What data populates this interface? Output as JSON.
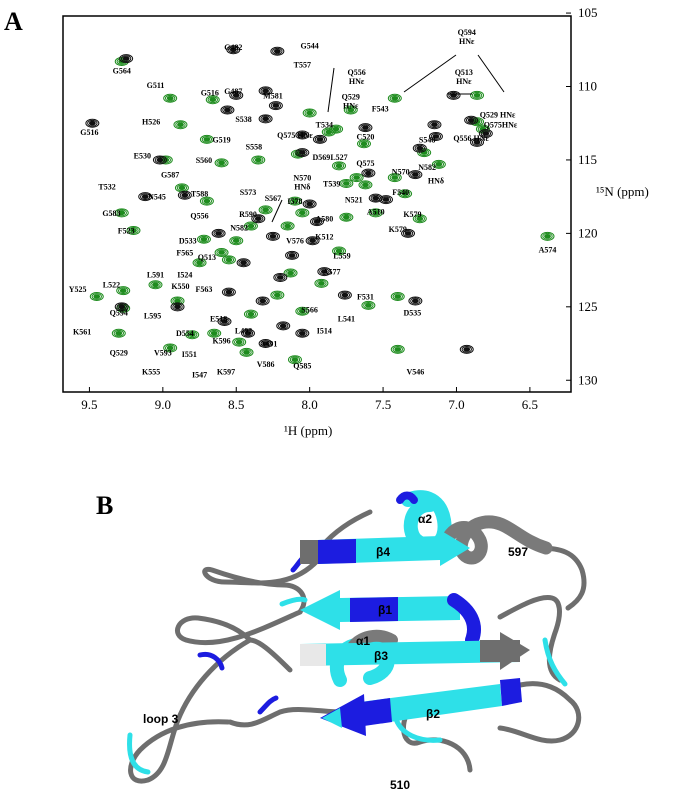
{
  "panels": {
    "a": {
      "letter": "A",
      "x_label": "¹H (ppm)",
      "y_label": "¹⁵N (ppm)",
      "x_ticks": [
        9.5,
        9.0,
        8.5,
        8.0,
        7.5,
        7.0,
        6.5
      ],
      "y_ticks": [
        105,
        110,
        115,
        120,
        125,
        130
      ],
      "x_range": [
        9.68,
        6.22
      ],
      "y_range": [
        105.2,
        130.8
      ]
    },
    "b": {
      "letter": "B",
      "labels": {
        "alpha2": "α2",
        "beta4": "β4",
        "res597": "597",
        "beta1": "β1",
        "alpha1": "α1",
        "beta3": "β3",
        "beta2": "β2",
        "loop3": "loop 3",
        "res510": "510"
      }
    }
  },
  "chart_data": {
    "type": "scatter",
    "title": "",
    "xlabel": "¹H (ppm)",
    "ylabel": "¹⁵N (ppm)",
    "xlim": [
      9.68,
      6.22
    ],
    "ylim": [
      105.2,
      130.8
    ],
    "series": [
      {
        "name": "",
        "color": "#1e8c1e",
        "points": [
          {
            "x": 9.28,
            "y": 108.3
          },
          {
            "x": 8.95,
            "y": 110.8
          },
          {
            "x": 8.66,
            "y": 110.9
          },
          {
            "x": 8.88,
            "y": 112.6
          },
          {
            "x": 8.7,
            "y": 113.6
          },
          {
            "x": 8.98,
            "y": 115.0
          },
          {
            "x": 8.6,
            "y": 115.2
          },
          {
            "x": 8.35,
            "y": 115.0
          },
          {
            "x": 8.87,
            "y": 116.9
          },
          {
            "x": 8.7,
            "y": 117.8
          },
          {
            "x": 9.28,
            "y": 118.6
          },
          {
            "x": 9.2,
            "y": 119.8
          },
          {
            "x": 8.72,
            "y": 120.4
          },
          {
            "x": 8.55,
            "y": 121.8
          },
          {
            "x": 8.75,
            "y": 122.0
          },
          {
            "x": 9.05,
            "y": 123.5
          },
          {
            "x": 9.27,
            "y": 123.9
          },
          {
            "x": 9.45,
            "y": 124.3
          },
          {
            "x": 8.9,
            "y": 124.6
          },
          {
            "x": 9.27,
            "y": 125.1
          },
          {
            "x": 9.3,
            "y": 126.8
          },
          {
            "x": 8.95,
            "y": 127.8
          },
          {
            "x": 8.8,
            "y": 126.9
          },
          {
            "x": 8.65,
            "y": 126.8
          },
          {
            "x": 8.48,
            "y": 127.4
          },
          {
            "x": 8.43,
            "y": 128.1
          },
          {
            "x": 8.4,
            "y": 125.5
          },
          {
            "x": 8.3,
            "y": 118.4
          },
          {
            "x": 8.15,
            "y": 119.5
          },
          {
            "x": 8.1,
            "y": 117.8
          },
          {
            "x": 8.05,
            "y": 118.6
          },
          {
            "x": 8.13,
            "y": 122.7
          },
          {
            "x": 8.05,
            "y": 125.3
          },
          {
            "x": 7.92,
            "y": 123.4
          },
          {
            "x": 7.8,
            "y": 121.2
          },
          {
            "x": 7.75,
            "y": 118.9
          },
          {
            "x": 8.22,
            "y": 124.2
          },
          {
            "x": 8.1,
            "y": 128.6
          },
          {
            "x": 8.4,
            "y": 119.5
          },
          {
            "x": 8.5,
            "y": 120.5
          },
          {
            "x": 8.6,
            "y": 121.3
          },
          {
            "x": 8.0,
            "y": 111.8
          },
          {
            "x": 7.87,
            "y": 113.1
          },
          {
            "x": 8.08,
            "y": 114.6
          },
          {
            "x": 7.63,
            "y": 113.9
          },
          {
            "x": 7.68,
            "y": 116.2
          },
          {
            "x": 7.75,
            "y": 116.6
          },
          {
            "x": 7.62,
            "y": 116.7
          },
          {
            "x": 7.42,
            "y": 116.2
          },
          {
            "x": 7.35,
            "y": 117.3
          },
          {
            "x": 7.55,
            "y": 118.6
          },
          {
            "x": 7.25,
            "y": 119.0
          },
          {
            "x": 7.22,
            "y": 114.5
          },
          {
            "x": 6.38,
            "y": 120.2
          },
          {
            "x": 7.4,
            "y": 124.3
          },
          {
            "x": 7.4,
            "y": 127.9
          },
          {
            "x": 7.6,
            "y": 124.9
          },
          {
            "x": 7.42,
            "y": 110.8
          },
          {
            "x": 7.12,
            "y": 115.3
          },
          {
            "x": 6.86,
            "y": 112.4
          },
          {
            "x": 6.82,
            "y": 112.9
          },
          {
            "x": 6.86,
            "y": 110.6
          },
          {
            "x": 7.72,
            "y": 111.6
          },
          {
            "x": 7.82,
            "y": 112.9
          },
          {
            "x": 7.8,
            "y": 115.4
          }
        ]
      },
      {
        "name": "",
        "color": "#111111",
        "points": [
          {
            "x": 8.52,
            "y": 107.5
          },
          {
            "x": 8.22,
            "y": 107.6
          },
          {
            "x": 9.25,
            "y": 108.1
          },
          {
            "x": 9.48,
            "y": 112.5
          },
          {
            "x": 8.5,
            "y": 110.6
          },
          {
            "x": 8.56,
            "y": 111.6
          },
          {
            "x": 8.3,
            "y": 110.3
          },
          {
            "x": 8.23,
            "y": 111.3
          },
          {
            "x": 8.3,
            "y": 112.2
          },
          {
            "x": 8.05,
            "y": 114.5
          },
          {
            "x": 8.05,
            "y": 113.3
          },
          {
            "x": 7.93,
            "y": 113.6
          },
          {
            "x": 7.62,
            "y": 112.8
          },
          {
            "x": 9.02,
            "y": 115.0
          },
          {
            "x": 9.12,
            "y": 117.5
          },
          {
            "x": 8.85,
            "y": 117.4
          },
          {
            "x": 8.62,
            "y": 120.0
          },
          {
            "x": 9.28,
            "y": 125.0
          },
          {
            "x": 8.9,
            "y": 125.0
          },
          {
            "x": 8.55,
            "y": 124.0
          },
          {
            "x": 8.58,
            "y": 126.0
          },
          {
            "x": 8.42,
            "y": 126.8
          },
          {
            "x": 8.3,
            "y": 127.5
          },
          {
            "x": 8.18,
            "y": 126.3
          },
          {
            "x": 8.05,
            "y": 126.8
          },
          {
            "x": 8.32,
            "y": 124.6
          },
          {
            "x": 8.2,
            "y": 123.0
          },
          {
            "x": 8.12,
            "y": 121.5
          },
          {
            "x": 7.98,
            "y": 120.5
          },
          {
            "x": 7.9,
            "y": 122.6
          },
          {
            "x": 7.76,
            "y": 124.2
          },
          {
            "x": 7.95,
            "y": 119.2
          },
          {
            "x": 8.0,
            "y": 118.0
          },
          {
            "x": 7.6,
            "y": 115.9
          },
          {
            "x": 7.55,
            "y": 117.6
          },
          {
            "x": 7.48,
            "y": 117.7
          },
          {
            "x": 7.28,
            "y": 116.0
          },
          {
            "x": 7.14,
            "y": 113.4
          },
          {
            "x": 7.33,
            "y": 120.0
          },
          {
            "x": 7.28,
            "y": 124.6
          },
          {
            "x": 6.93,
            "y": 127.9
          },
          {
            "x": 7.25,
            "y": 114.2
          },
          {
            "x": 7.15,
            "y": 112.6
          },
          {
            "x": 6.9,
            "y": 112.3
          },
          {
            "x": 6.86,
            "y": 113.8
          },
          {
            "x": 6.8,
            "y": 113.2
          },
          {
            "x": 7.02,
            "y": 110.6
          },
          {
            "x": 8.35,
            "y": 119.0
          },
          {
            "x": 8.45,
            "y": 122.0
          },
          {
            "x": 8.25,
            "y": 120.2
          }
        ]
      }
    ],
    "annotations": [
      {
        "text": "G482",
        "x": 8.52,
        "y": 107.5
      },
      {
        "text": "G544",
        "x": 8.0,
        "y": 107.4
      },
      {
        "text": "G564",
        "x": 9.28,
        "y": 109.1
      },
      {
        "text": "T557",
        "x": 8.05,
        "y": 108.7
      },
      {
        "text": "Q594\nHNε",
        "x": 6.93,
        "y": 106.5
      },
      {
        "text": "Q556\nHNε",
        "x": 7.68,
        "y": 109.2
      },
      {
        "text": "Q513\nHNε",
        "x": 6.95,
        "y": 109.2
      },
      {
        "text": "G511",
        "x": 9.05,
        "y": 110.1
      },
      {
        "text": "G516",
        "x": 8.68,
        "y": 110.6
      },
      {
        "text": "G487",
        "x": 8.52,
        "y": 110.5
      },
      {
        "text": "M581",
        "x": 8.25,
        "y": 110.8
      },
      {
        "text": "Q529\nHNε",
        "x": 7.72,
        "y": 110.9
      },
      {
        "text": "F543",
        "x": 7.52,
        "y": 111.7
      },
      {
        "text": "Q529 HNε",
        "x": 6.72,
        "y": 112.1
      },
      {
        "text": "H526",
        "x": 9.08,
        "y": 112.6
      },
      {
        "text": "S538",
        "x": 8.45,
        "y": 112.4
      },
      {
        "text": "T534",
        "x": 7.9,
        "y": 112.8
      },
      {
        "text": "Q575HNε",
        "x": 6.7,
        "y": 112.8
      },
      {
        "text": "G516",
        "x": 9.5,
        "y": 113.3
      },
      {
        "text": "G519",
        "x": 8.6,
        "y": 113.8
      },
      {
        "text": "Q575 HNε",
        "x": 8.1,
        "y": 113.5
      },
      {
        "text": "C520",
        "x": 7.62,
        "y": 113.6
      },
      {
        "text": "S548",
        "x": 7.2,
        "y": 113.8
      },
      {
        "text": "Q556 HNε",
        "x": 6.9,
        "y": 113.7
      },
      {
        "text": "S558",
        "x": 8.38,
        "y": 114.3
      },
      {
        "text": "E530",
        "x": 9.14,
        "y": 114.9
      },
      {
        "text": "S560",
        "x": 8.72,
        "y": 115.2
      },
      {
        "text": "D569",
        "x": 7.92,
        "y": 115.0
      },
      {
        "text": "L527",
        "x": 7.8,
        "y": 115.0
      },
      {
        "text": "Q575",
        "x": 7.62,
        "y": 115.4
      },
      {
        "text": "N570",
        "x": 7.38,
        "y": 116.0
      },
      {
        "text": "N582",
        "x": 7.2,
        "y": 115.7
      },
      {
        "text": "N570\nHNδ",
        "x": 8.05,
        "y": 116.4
      },
      {
        "text": "HNδ",
        "x": 7.14,
        "y": 116.6
      },
      {
        "text": "G587",
        "x": 8.95,
        "y": 116.2
      },
      {
        "text": "T532",
        "x": 9.38,
        "y": 117.0
      },
      {
        "text": "N545",
        "x": 9.04,
        "y": 117.7
      },
      {
        "text": "T539",
        "x": 7.85,
        "y": 116.8
      },
      {
        "text": "F540",
        "x": 7.38,
        "y": 117.4
      },
      {
        "text": "T588",
        "x": 8.75,
        "y": 117.5
      },
      {
        "text": "S573",
        "x": 8.42,
        "y": 117.4
      },
      {
        "text": "S567",
        "x": 8.25,
        "y": 117.8
      },
      {
        "text": "I578",
        "x": 8.1,
        "y": 118.0
      },
      {
        "text": "N521",
        "x": 7.7,
        "y": 117.9
      },
      {
        "text": "G583",
        "x": 9.35,
        "y": 118.8
      },
      {
        "text": "A510",
        "x": 7.55,
        "y": 118.7
      },
      {
        "text": "K579",
        "x": 7.3,
        "y": 118.9
      },
      {
        "text": "R590",
        "x": 8.42,
        "y": 118.9
      },
      {
        "text": "Q556",
        "x": 8.75,
        "y": 119.0
      },
      {
        "text": "A580",
        "x": 7.9,
        "y": 119.2
      },
      {
        "text": "F523",
        "x": 9.25,
        "y": 120.0
      },
      {
        "text": "N582",
        "x": 8.48,
        "y": 119.8
      },
      {
        "text": "K579",
        "x": 7.4,
        "y": 119.9
      },
      {
        "text": "K512",
        "x": 7.9,
        "y": 120.4
      },
      {
        "text": "D533",
        "x": 8.83,
        "y": 120.7
      },
      {
        "text": "V576",
        "x": 8.1,
        "y": 120.7
      },
      {
        "text": "A574",
        "x": 6.38,
        "y": 121.3
      },
      {
        "text": "F565",
        "x": 8.85,
        "y": 121.5
      },
      {
        "text": "Q513",
        "x": 8.7,
        "y": 121.8
      },
      {
        "text": "L559",
        "x": 7.78,
        "y": 121.7
      },
      {
        "text": "A577",
        "x": 7.85,
        "y": 122.8
      },
      {
        "text": "L591",
        "x": 9.05,
        "y": 123.0
      },
      {
        "text": "I524",
        "x": 8.85,
        "y": 123.0
      },
      {
        "text": "K550",
        "x": 8.88,
        "y": 123.8
      },
      {
        "text": "F563",
        "x": 8.72,
        "y": 124.0
      },
      {
        "text": "Y525",
        "x": 9.58,
        "y": 124.0
      },
      {
        "text": "L522",
        "x": 9.35,
        "y": 123.7
      },
      {
        "text": "F531",
        "x": 7.62,
        "y": 124.5
      },
      {
        "text": "L595",
        "x": 9.07,
        "y": 125.8
      },
      {
        "text": "D535",
        "x": 7.3,
        "y": 125.6
      },
      {
        "text": "Q594",
        "x": 9.3,
        "y": 125.6
      },
      {
        "text": "E518",
        "x": 8.62,
        "y": 126.0
      },
      {
        "text": "S566",
        "x": 8.0,
        "y": 125.4
      },
      {
        "text": "L541",
        "x": 7.75,
        "y": 126.0
      },
      {
        "text": "L492",
        "x": 8.45,
        "y": 126.8
      },
      {
        "text": "I514",
        "x": 7.9,
        "y": 126.8
      },
      {
        "text": "K561",
        "x": 9.55,
        "y": 126.9
      },
      {
        "text": "D554",
        "x": 8.85,
        "y": 127.0
      },
      {
        "text": "K596",
        "x": 8.6,
        "y": 127.5
      },
      {
        "text": "A491",
        "x": 8.28,
        "y": 127.7
      },
      {
        "text": "Q529",
        "x": 9.3,
        "y": 128.3
      },
      {
        "text": "V593",
        "x": 9.0,
        "y": 128.3
      },
      {
        "text": "I551",
        "x": 8.82,
        "y": 128.4
      },
      {
        "text": "V586",
        "x": 8.3,
        "y": 129.1
      },
      {
        "text": "Q585",
        "x": 8.05,
        "y": 129.2
      },
      {
        "text": "K555",
        "x": 9.08,
        "y": 129.6
      },
      {
        "text": "I547",
        "x": 8.75,
        "y": 129.8
      },
      {
        "text": "K597",
        "x": 8.57,
        "y": 129.6
      },
      {
        "text": "V546",
        "x": 7.28,
        "y": 129.6
      }
    ]
  }
}
